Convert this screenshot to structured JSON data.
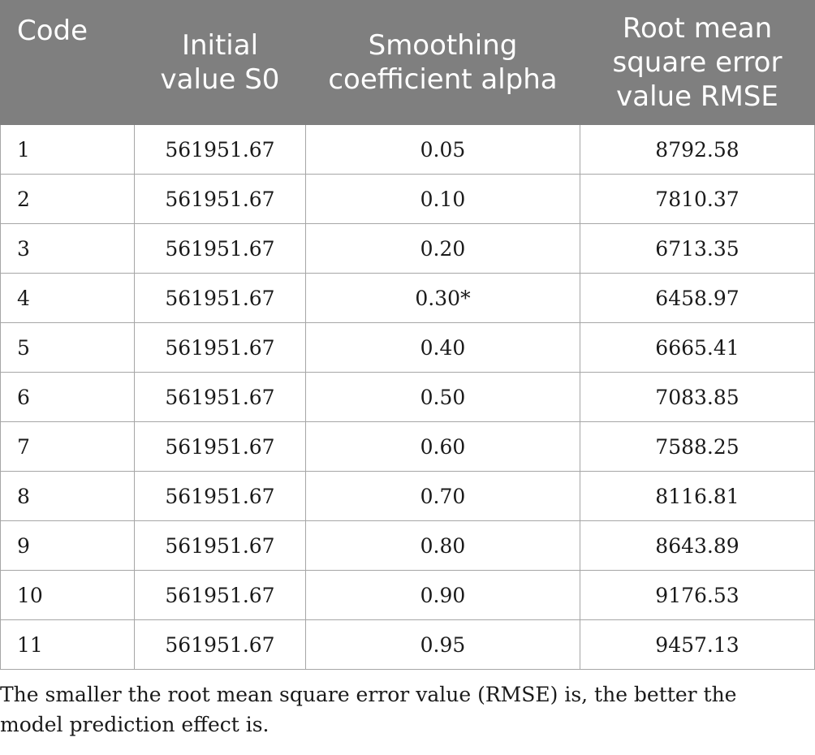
{
  "table": {
    "headers": [
      "Code",
      "Initial value S0",
      "Smoothing coefficient alpha",
      "Root mean square error value RMSE"
    ],
    "rows": [
      [
        "1",
        "561951.67",
        "0.05",
        "8792.58"
      ],
      [
        "2",
        "561951.67",
        "0.10",
        "7810.37"
      ],
      [
        "3",
        "561951.67",
        "0.20",
        "6713.35"
      ],
      [
        "4",
        "561951.67",
        "0.30*",
        "6458.97"
      ],
      [
        "5",
        "561951.67",
        "0.40",
        "6665.41"
      ],
      [
        "6",
        "561951.67",
        "0.50",
        "7083.85"
      ],
      [
        "7",
        "561951.67",
        "0.60",
        "7588.25"
      ],
      [
        "8",
        "561951.67",
        "0.70",
        "8116.81"
      ],
      [
        "9",
        "561951.67",
        "0.80",
        "8643.89"
      ],
      [
        "10",
        "561951.67",
        "0.90",
        "9176.53"
      ],
      [
        "11",
        "561951.67",
        "0.95",
        "9457.13"
      ]
    ]
  },
  "footnote": "The smaller the root mean square error value (RMSE) is, the better the model prediction effect is.",
  "colors": {
    "header_bg": "#7f7f7f",
    "header_text": "#ffffff",
    "grid": "#a6a6a6"
  }
}
